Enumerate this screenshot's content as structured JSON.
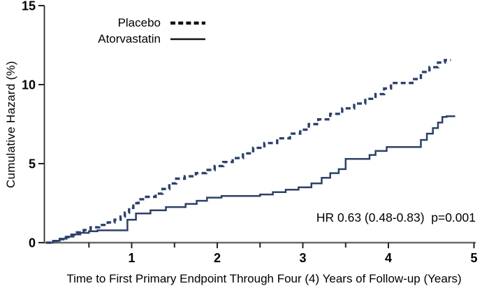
{
  "chart_data": {
    "type": "line",
    "subtype": "step-cumulative-hazard",
    "title": "",
    "xlabel": "Time to First Primary Endpoint Through Four (4) Years of Follow-up (Years)",
    "ylabel": "Cumulative Hazard (%)",
    "xlim": [
      0,
      5
    ],
    "ylim": [
      0,
      15
    ],
    "x_major_ticks": [
      1,
      2,
      3,
      4,
      5
    ],
    "x_minor_ticks": [
      0.5,
      1.5,
      2.5,
      3.5
    ],
    "y_ticks": [
      0,
      5,
      10,
      15
    ],
    "grid": false,
    "legend_position": "top-left-inside",
    "annotation": "HR 0.63 (0.48-0.83)  p=0.001",
    "line_color": "#2d4168",
    "legend_line_color": "#111111",
    "series": [
      {
        "name": "Placebo",
        "style": "dashed",
        "end_x": 4.73,
        "step_points": [
          [
            0,
            0
          ],
          [
            0.06,
            0.1
          ],
          [
            0.13,
            0.22
          ],
          [
            0.2,
            0.35
          ],
          [
            0.28,
            0.5
          ],
          [
            0.36,
            0.65
          ],
          [
            0.44,
            0.8
          ],
          [
            0.52,
            0.97
          ],
          [
            0.62,
            1.12
          ],
          [
            0.72,
            1.28
          ],
          [
            0.8,
            1.45
          ],
          [
            0.87,
            1.65
          ],
          [
            0.92,
            1.9
          ],
          [
            0.97,
            2.2
          ],
          [
            1.02,
            2.5
          ],
          [
            1.08,
            2.75
          ],
          [
            1.15,
            2.9
          ],
          [
            1.28,
            3.1
          ],
          [
            1.36,
            3.4
          ],
          [
            1.44,
            3.75
          ],
          [
            1.52,
            4.05
          ],
          [
            1.62,
            4.2
          ],
          [
            1.75,
            4.4
          ],
          [
            1.87,
            4.6
          ],
          [
            1.97,
            4.85
          ],
          [
            2.07,
            5.1
          ],
          [
            2.18,
            5.35
          ],
          [
            2.3,
            5.65
          ],
          [
            2.42,
            6.0
          ],
          [
            2.55,
            6.3
          ],
          [
            2.7,
            6.6
          ],
          [
            2.85,
            6.9
          ],
          [
            2.97,
            7.15
          ],
          [
            3.07,
            7.5
          ],
          [
            3.18,
            7.8
          ],
          [
            3.32,
            8.15
          ],
          [
            3.46,
            8.5
          ],
          [
            3.6,
            8.8
          ],
          [
            3.73,
            9.1
          ],
          [
            3.85,
            9.4
          ],
          [
            3.95,
            9.75
          ],
          [
            4.03,
            10.1
          ],
          [
            4.28,
            10.35
          ],
          [
            4.38,
            10.8
          ],
          [
            4.48,
            11.1
          ],
          [
            4.58,
            11.4
          ],
          [
            4.66,
            11.55
          ]
        ]
      },
      {
        "name": "Atorvastatin",
        "style": "solid",
        "end_x": 4.78,
        "step_points": [
          [
            0,
            0
          ],
          [
            0.08,
            0.12
          ],
          [
            0.16,
            0.25
          ],
          [
            0.24,
            0.38
          ],
          [
            0.32,
            0.52
          ],
          [
            0.4,
            0.62
          ],
          [
            0.5,
            0.72
          ],
          [
            0.6,
            0.78
          ],
          [
            0.95,
            1.45
          ],
          [
            1.05,
            1.85
          ],
          [
            1.22,
            2.05
          ],
          [
            1.4,
            2.25
          ],
          [
            1.63,
            2.45
          ],
          [
            1.76,
            2.65
          ],
          [
            1.88,
            2.85
          ],
          [
            2.05,
            2.95
          ],
          [
            2.5,
            3.05
          ],
          [
            2.65,
            3.2
          ],
          [
            2.8,
            3.35
          ],
          [
            2.95,
            3.5
          ],
          [
            3.1,
            3.75
          ],
          [
            3.22,
            4.1
          ],
          [
            3.32,
            4.4
          ],
          [
            3.42,
            4.65
          ],
          [
            3.5,
            5.3
          ],
          [
            3.78,
            5.55
          ],
          [
            3.85,
            5.8
          ],
          [
            3.98,
            6.05
          ],
          [
            4.38,
            6.5
          ],
          [
            4.45,
            6.9
          ],
          [
            4.52,
            7.25
          ],
          [
            4.58,
            7.6
          ],
          [
            4.63,
            7.95
          ],
          [
            4.68,
            8.0
          ]
        ]
      }
    ]
  }
}
